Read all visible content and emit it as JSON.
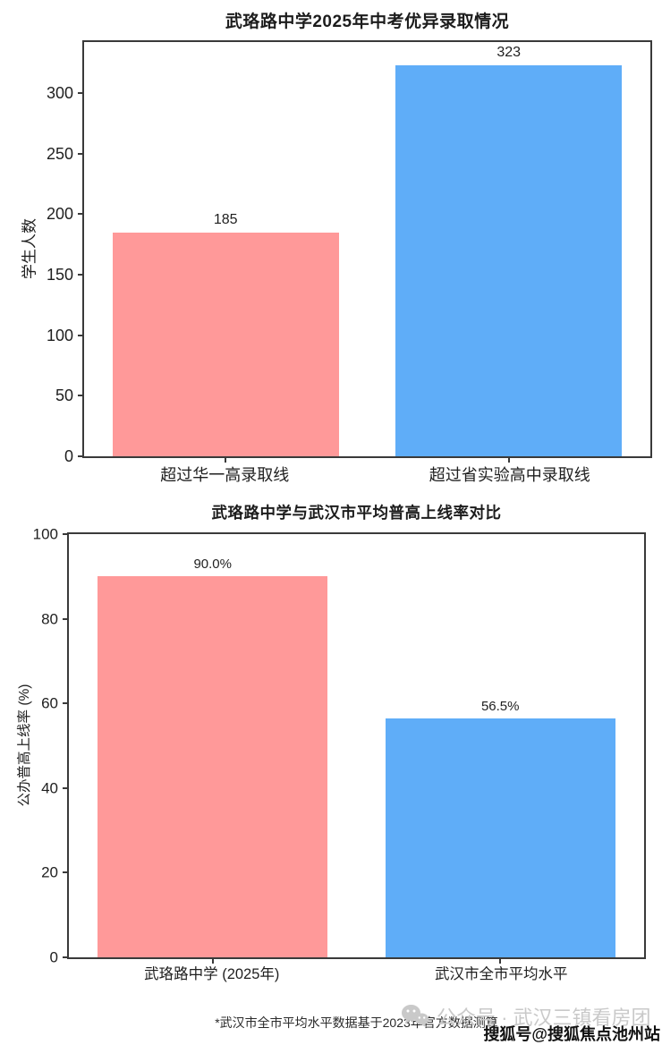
{
  "chart_data": [
    {
      "type": "bar",
      "title": "武珞路中学2025年中考优异录取情况",
      "ylabel": "学生人数",
      "xlabel": "",
      "categories": [
        "超过华一高录取线",
        "超过省实验高中录取线"
      ],
      "values": [
        185,
        323
      ],
      "value_labels": [
        "185",
        "323"
      ],
      "bar_colors": [
        "#ff9999",
        "#5fadf8"
      ],
      "ylim": [
        0,
        342
      ],
      "yticks": [
        0,
        50,
        100,
        150,
        200,
        250,
        300
      ],
      "grid": false,
      "legend": null
    },
    {
      "type": "bar",
      "title": "武珞路中学与武汉市平均普高上线率对比",
      "ylabel": "公办普高上线率 (%)",
      "xlabel": "",
      "categories": [
        "武珞路中学 (2025年)",
        "武汉市全市平均水平"
      ],
      "values": [
        90.0,
        56.5
      ],
      "value_labels": [
        "90.0%",
        "56.5%"
      ],
      "bar_colors": [
        "#ff9999",
        "#5fadf8"
      ],
      "ylim": [
        0,
        100
      ],
      "yticks": [
        0,
        20,
        40,
        60,
        80,
        100
      ],
      "grid": false,
      "legend": null,
      "footnote": "*武汉市全市平均水平数据基于2023年官方数据测算"
    }
  ],
  "watermarks": {
    "wechat_text": "公众号 · 武汉三镇看房团",
    "sohu_text": "搜狐号@搜狐焦点池州站"
  },
  "colors": {
    "bar_pink": "#ff9999",
    "bar_blue": "#5fadf8",
    "axis": "#3a3a3a",
    "text": "#1f1f1f",
    "watermark_gray": "#c9c9c9"
  }
}
